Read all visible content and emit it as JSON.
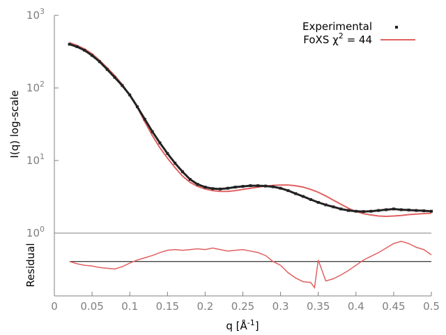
{
  "chart_data": {
    "type": "line",
    "title": "",
    "main_panel": {
      "ylabel": "I(q) log-scale",
      "yscale": "log",
      "ylim": [
        1,
        1000
      ],
      "y_ticks": [
        {
          "value": 1,
          "base": "10",
          "exp": "0"
        },
        {
          "value": 10,
          "base": "10",
          "exp": "1"
        },
        {
          "value": 100,
          "base": "10",
          "exp": "2"
        },
        {
          "value": 1000,
          "base": "10",
          "exp": "3"
        }
      ],
      "series": [
        {
          "name": "Experimental",
          "kind": "scatter",
          "color": "#222222",
          "x": [
            0.02,
            0.03,
            0.04,
            0.05,
            0.06,
            0.07,
            0.08,
            0.09,
            0.1,
            0.11,
            0.12,
            0.13,
            0.14,
            0.15,
            0.16,
            0.17,
            0.18,
            0.19,
            0.2,
            0.21,
            0.22,
            0.23,
            0.24,
            0.25,
            0.26,
            0.27,
            0.28,
            0.29,
            0.3,
            0.31,
            0.32,
            0.33,
            0.34,
            0.35,
            0.36,
            0.37,
            0.38,
            0.39,
            0.4,
            0.41,
            0.42,
            0.43,
            0.44,
            0.45,
            0.46,
            0.47,
            0.48,
            0.49,
            0.5
          ],
          "y": [
            400,
            370,
            330,
            280,
            230,
            180,
            140,
            108,
            80,
            55,
            37,
            25,
            17.5,
            12.5,
            9.2,
            7.0,
            5.5,
            4.7,
            4.3,
            4.1,
            4.05,
            4.15,
            4.3,
            4.4,
            4.5,
            4.5,
            4.45,
            4.35,
            4.15,
            3.85,
            3.5,
            3.2,
            2.9,
            2.65,
            2.45,
            2.3,
            2.15,
            2.05,
            2.0,
            1.98,
            2.0,
            2.05,
            2.1,
            2.15,
            2.1,
            2.08,
            2.05,
            2.03,
            2.0
          ]
        },
        {
          "name": "FoXS χ² = 44",
          "kind": "line",
          "color": "#e06060",
          "x": [
            0.02,
            0.03,
            0.04,
            0.05,
            0.06,
            0.07,
            0.08,
            0.09,
            0.1,
            0.11,
            0.12,
            0.13,
            0.14,
            0.15,
            0.16,
            0.17,
            0.18,
            0.19,
            0.2,
            0.21,
            0.22,
            0.23,
            0.24,
            0.25,
            0.26,
            0.27,
            0.28,
            0.29,
            0.3,
            0.31,
            0.32,
            0.33,
            0.34,
            0.35,
            0.36,
            0.37,
            0.38,
            0.39,
            0.4,
            0.41,
            0.42,
            0.43,
            0.44,
            0.45,
            0.46,
            0.47,
            0.48,
            0.49,
            0.5
          ],
          "y": [
            420,
            385,
            345,
            295,
            240,
            190,
            148,
            112,
            80,
            54,
            34,
            22,
            15,
            10.8,
            8.0,
            6.1,
            5.0,
            4.4,
            4.05,
            3.85,
            3.75,
            3.75,
            3.85,
            4.0,
            4.15,
            4.3,
            4.45,
            4.55,
            4.6,
            4.6,
            4.5,
            4.3,
            4.0,
            3.65,
            3.25,
            2.85,
            2.5,
            2.2,
            1.98,
            1.85,
            1.78,
            1.72,
            1.7,
            1.72,
            1.75,
            1.8,
            1.83,
            1.86,
            1.88
          ]
        }
      ]
    },
    "residual_panel": {
      "ylabel": "Residual",
      "baseline": 0,
      "ylim": [
        -4.6,
        3.8
      ],
      "series": [
        {
          "name": "residual",
          "kind": "line",
          "color": "#e06060",
          "x": [
            0.02,
            0.03,
            0.04,
            0.05,
            0.06,
            0.07,
            0.08,
            0.09,
            0.1,
            0.11,
            0.12,
            0.13,
            0.14,
            0.15,
            0.16,
            0.17,
            0.18,
            0.19,
            0.2,
            0.21,
            0.22,
            0.23,
            0.24,
            0.25,
            0.26,
            0.27,
            0.28,
            0.29,
            0.3,
            0.31,
            0.32,
            0.33,
            0.34,
            0.345,
            0.35,
            0.36,
            0.37,
            0.38,
            0.39,
            0.4,
            0.41,
            0.42,
            0.43,
            0.44,
            0.45,
            0.46,
            0.47,
            0.48,
            0.49,
            0.5
          ],
          "y": [
            0.0,
            -0.3,
            -0.5,
            -0.6,
            -0.8,
            -0.9,
            -1.0,
            -0.7,
            -0.2,
            0.2,
            0.5,
            0.8,
            1.2,
            1.5,
            1.6,
            1.5,
            1.6,
            1.7,
            1.6,
            1.8,
            1.6,
            1.4,
            1.5,
            1.6,
            1.4,
            1.2,
            0.8,
            0.0,
            -0.5,
            -1.5,
            -2.2,
            -2.7,
            -2.8,
            -3.5,
            0.2,
            -2.6,
            -2.3,
            -1.8,
            -1.2,
            -0.5,
            0.2,
            0.7,
            1.2,
            1.8,
            2.4,
            2.7,
            2.4,
            1.9,
            1.6,
            0.9
          ]
        }
      ]
    },
    "x_axis": {
      "label_base": "q [Å",
      "label_exp": "-1",
      "label_tail": "]",
      "ticks": [
        "0",
        "0.05",
        "0.1",
        "0.15",
        "0.2",
        "0.25",
        "0.3",
        "0.35",
        "0.4",
        "0.45",
        "0.5"
      ],
      "tick_values": [
        0,
        0.05,
        0.1,
        0.15,
        0.2,
        0.25,
        0.3,
        0.35,
        0.4,
        0.45,
        0.5
      ],
      "xlim": [
        0,
        0.5
      ]
    },
    "legend": {
      "placement": "top-right",
      "entries": [
        {
          "label": "Experimental",
          "marker": "point",
          "color": "#222222"
        },
        {
          "label_base": "FoXS χ",
          "label_exp": "2",
          "label_tail": " = 44",
          "marker": "line",
          "color": "#e06060"
        }
      ]
    },
    "grid": false
  }
}
